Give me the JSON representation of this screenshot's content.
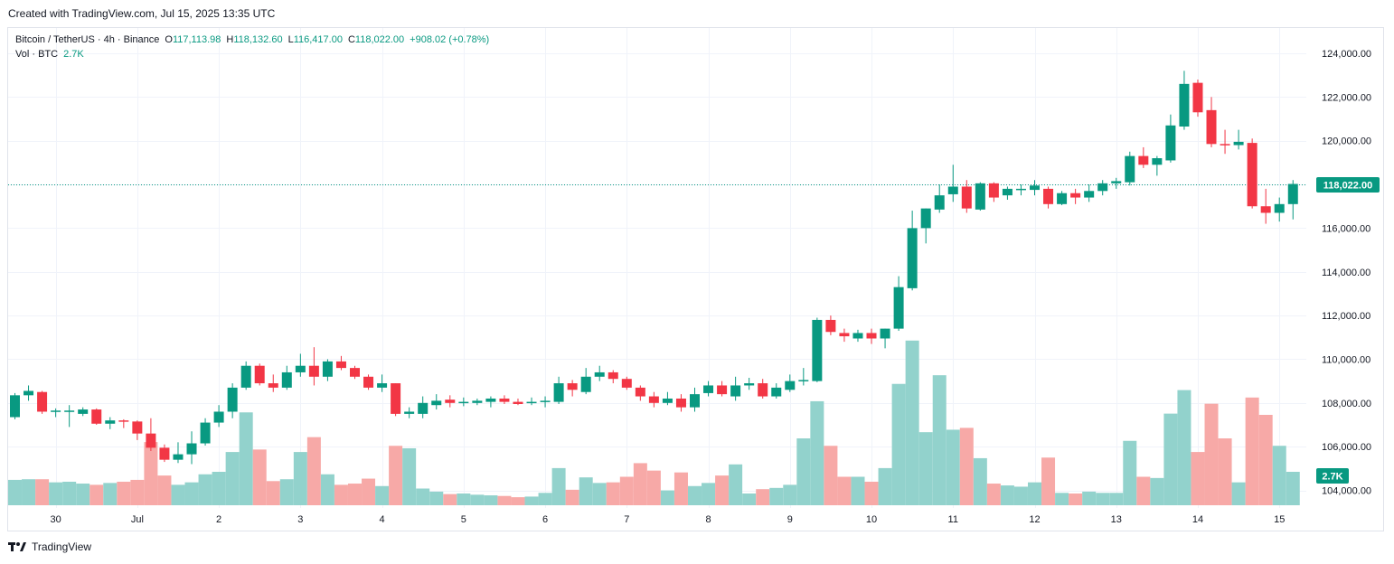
{
  "header": {
    "created": "Created with TradingView.com, Jul 15, 2025 13:35 UTC"
  },
  "legend": {
    "symbol": "Bitcoin / TetherUS · 4h · Binance",
    "open_label": "O",
    "open": "117,113.98",
    "high_label": "H",
    "high": "118,132.60",
    "low_label": "L",
    "low": "116,417.00",
    "close_label": "C",
    "close": "118,022.00",
    "change": "+908.02 (+0.78%)",
    "vol_label": "Vol · BTC",
    "vol_value": "2.7K"
  },
  "footer": {
    "brand": "TradingView",
    "logo": "tradingview-logo-icon"
  },
  "colors": {
    "up": "#089981",
    "down": "#f23645",
    "up_vol": "#92d2cc",
    "down_vol": "#f7a9a7",
    "grid": "#f0f3fa",
    "last_line": "#089981"
  },
  "chart_data": {
    "type": "candlestick",
    "title": "Bitcoin / TetherUS · 4h · Binance",
    "interval": "4h",
    "price_axis": {
      "range": [
        103200,
        125200
      ],
      "ticks": [
        "104,000.00",
        "106,000.00",
        "108,000.00",
        "110,000.00",
        "112,000.00",
        "114,000.00",
        "116,000.00",
        "118,000.00",
        "120,000.00",
        "122,000.00",
        "124,000.00"
      ],
      "tick_values": [
        104000,
        106000,
        108000,
        110000,
        112000,
        114000,
        116000,
        118000,
        120000,
        122000,
        124000
      ]
    },
    "x_axis": {
      "labels": [
        "30",
        "Jul",
        "2",
        "3",
        "4",
        "5",
        "6",
        "7",
        "8",
        "9",
        "10",
        "11",
        "12",
        "13",
        "14",
        "15"
      ],
      "label_bar_index": [
        3,
        9,
        15,
        21,
        27,
        33,
        39,
        45,
        51,
        57,
        63,
        69,
        75,
        81,
        87,
        93
      ]
    },
    "last_price_label": "118,022.00",
    "last_price": 118022,
    "volume_label": "2.7K",
    "grid": true,
    "ohlc": [
      [
        107350,
        108450,
        107250,
        108350
      ],
      [
        108350,
        108800,
        108100,
        108550
      ],
      [
        108500,
        108550,
        107500,
        107600
      ],
      [
        107600,
        107750,
        107350,
        107650
      ],
      [
        107600,
        107900,
        106900,
        107650
      ],
      [
        107500,
        107800,
        107400,
        107700
      ],
      [
        107700,
        107750,
        107000,
        107050
      ],
      [
        107050,
        107350,
        106800,
        107200
      ],
      [
        107200,
        107250,
        106850,
        107150
      ],
      [
        107150,
        107200,
        106300,
        106600
      ],
      [
        106600,
        107300,
        105800,
        105950
      ],
      [
        105950,
        106100,
        105300,
        105400
      ],
      [
        105400,
        106200,
        105250,
        105650
      ],
      [
        105650,
        106700,
        105200,
        106150
      ],
      [
        106150,
        107300,
        106050,
        107100
      ],
      [
        107100,
        107900,
        106900,
        107600
      ],
      [
        107600,
        108900,
        107300,
        108700
      ],
      [
        108700,
        109900,
        108600,
        109700
      ],
      [
        109700,
        109800,
        108800,
        108900
      ],
      [
        108900,
        109300,
        108500,
        108700
      ],
      [
        108700,
        109700,
        108600,
        109400
      ],
      [
        109400,
        110250,
        109200,
        109700
      ],
      [
        109700,
        110550,
        108800,
        109200
      ],
      [
        109200,
        110000,
        109000,
        109900
      ],
      [
        109900,
        110150,
        109500,
        109600
      ],
      [
        109600,
        109700,
        109100,
        109200
      ],
      [
        109200,
        109300,
        108600,
        108700
      ],
      [
        108700,
        109300,
        108500,
        108900
      ],
      [
        108900,
        108900,
        107400,
        107500
      ],
      [
        107500,
        107800,
        107300,
        107600
      ],
      [
        107500,
        108300,
        107300,
        108000
      ],
      [
        107900,
        108400,
        107700,
        108100
      ],
      [
        108150,
        108350,
        107800,
        108000
      ],
      [
        108000,
        108250,
        107850,
        108050
      ],
      [
        108000,
        108200,
        107900,
        108100
      ],
      [
        108050,
        108300,
        107800,
        108200
      ],
      [
        108200,
        108350,
        107950,
        108050
      ],
      [
        108050,
        108200,
        107900,
        107950
      ],
      [
        108000,
        108250,
        107900,
        108050
      ],
      [
        108050,
        108300,
        107800,
        108100
      ],
      [
        108050,
        109200,
        107950,
        108900
      ],
      [
        108900,
        109050,
        108300,
        108600
      ],
      [
        108500,
        109600,
        108400,
        109200
      ],
      [
        109200,
        109700,
        109000,
        109400
      ],
      [
        109400,
        109500,
        108900,
        109100
      ],
      [
        109100,
        109200,
        108600,
        108700
      ],
      [
        108700,
        108800,
        108100,
        108300
      ],
      [
        108300,
        108500,
        107800,
        108000
      ],
      [
        108000,
        108500,
        107900,
        108200
      ],
      [
        108200,
        108400,
        107600,
        107800
      ],
      [
        107800,
        108700,
        107600,
        108400
      ],
      [
        108450,
        109000,
        108300,
        108800
      ],
      [
        108800,
        109000,
        108300,
        108400
      ],
      [
        108300,
        109200,
        108100,
        108800
      ],
      [
        108800,
        109150,
        108600,
        108900
      ],
      [
        108900,
        109100,
        108200,
        108300
      ],
      [
        108300,
        108900,
        108200,
        108700
      ],
      [
        108600,
        109300,
        108500,
        109000
      ],
      [
        109000,
        109600,
        108800,
        109050
      ],
      [
        109000,
        111900,
        108950,
        111800
      ],
      [
        111800,
        112000,
        111100,
        111250
      ],
      [
        111200,
        111400,
        110800,
        111050
      ],
      [
        110950,
        111350,
        110800,
        111200
      ],
      [
        111200,
        111400,
        110700,
        110950
      ],
      [
        110950,
        111400,
        110500,
        111400
      ],
      [
        111400,
        113800,
        111300,
        113300
      ],
      [
        113250,
        116800,
        113150,
        116000
      ],
      [
        116000,
        116900,
        115300,
        116900
      ],
      [
        116850,
        118000,
        116700,
        117500
      ],
      [
        117550,
        118900,
        117200,
        117900
      ],
      [
        117900,
        118200,
        116700,
        116900
      ],
      [
        116850,
        118100,
        116800,
        118050
      ],
      [
        118050,
        118100,
        117200,
        117400
      ],
      [
        117500,
        117900,
        117300,
        117800
      ],
      [
        117750,
        118000,
        117500,
        117800
      ],
      [
        117750,
        118200,
        117500,
        117950
      ],
      [
        117800,
        117900,
        116900,
        117100
      ],
      [
        117100,
        117700,
        117050,
        117600
      ],
      [
        117600,
        117800,
        117100,
        117400
      ],
      [
        117400,
        118000,
        117200,
        117700
      ],
      [
        117700,
        118200,
        117500,
        118050
      ],
      [
        118050,
        118300,
        117800,
        118150
      ],
      [
        118100,
        119500,
        117950,
        119300
      ],
      [
        119300,
        119700,
        118750,
        118900
      ],
      [
        118900,
        119300,
        118400,
        119200
      ],
      [
        119100,
        121200,
        119000,
        120700
      ],
      [
        120650,
        123200,
        120500,
        122600
      ],
      [
        122650,
        122800,
        121100,
        121300
      ],
      [
        121400,
        122000,
        119700,
        119850
      ],
      [
        119850,
        120500,
        119400,
        119800
      ],
      [
        119800,
        120500,
        119600,
        119950
      ],
      [
        119900,
        120100,
        116900,
        117000
      ],
      [
        117000,
        117800,
        116200,
        116700
      ],
      [
        116700,
        117400,
        116300,
        117100
      ],
      [
        117100,
        118200,
        116400,
        118022
      ]
    ],
    "volume_btc": [
      2.05,
      2.1,
      2.1,
      1.85,
      1.9,
      1.75,
      1.65,
      1.8,
      1.9,
      2.05,
      5.1,
      2.4,
      1.65,
      1.85,
      2.5,
      2.7,
      4.3,
      7.5,
      4.5,
      1.95,
      2.1,
      4.3,
      5.5,
      2.5,
      1.65,
      1.75,
      2.15,
      1.55,
      4.8,
      4.6,
      1.35,
      1.1,
      0.9,
      0.95,
      0.85,
      0.8,
      0.75,
      0.65,
      0.7,
      1.0,
      3.0,
      1.25,
      2.25,
      1.8,
      1.85,
      2.3,
      3.4,
      2.8,
      1.2,
      2.65,
      1.55,
      1.8,
      2.4,
      3.3,
      0.95,
      1.3,
      1.4,
      1.65,
      5.4,
      8.4,
      4.8,
      2.3,
      2.3,
      1.9,
      3.0,
      9.8,
      13.3,
      5.9,
      10.5,
      6.1,
      6.25,
      3.8,
      1.75,
      1.6,
      1.5,
      1.85,
      3.85,
      1.0,
      0.95,
      1.1,
      1.0,
      1.0,
      5.2,
      2.3,
      2.2,
      7.4,
      9.3,
      4.3,
      8.2,
      5.4,
      1.85,
      8.7,
      7.3,
      4.8,
      2.7
    ]
  }
}
